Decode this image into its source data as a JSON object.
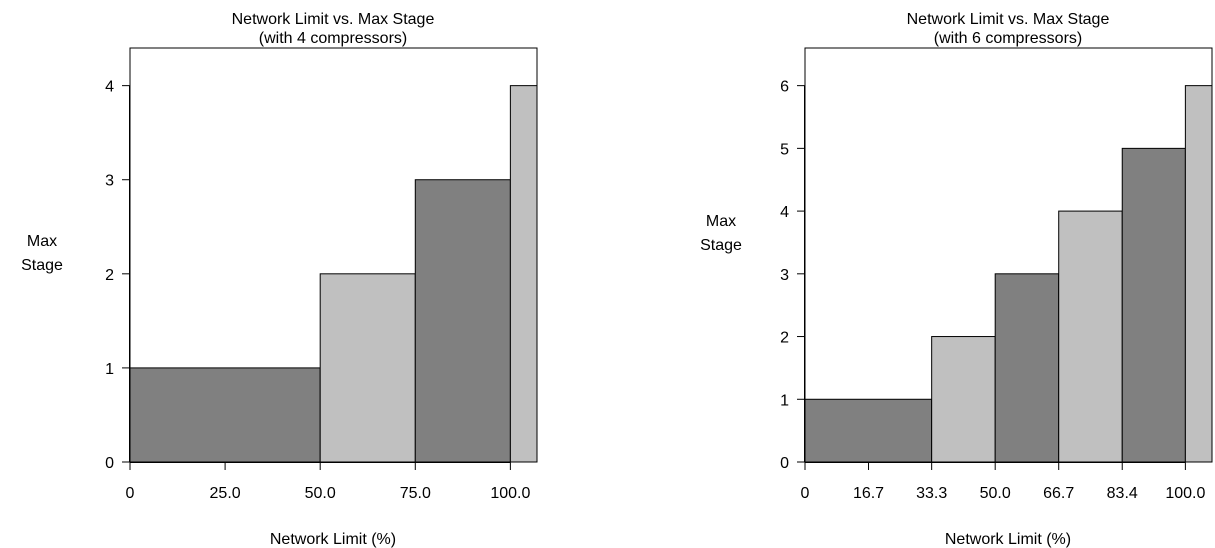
{
  "chart_data": [
    {
      "type": "bar",
      "title": "Network Limit vs. Max Stage",
      "subtitle": "(with 4 compressors)",
      "xlabel": "Network Limit (%)",
      "ylabel_lines": [
        "Max",
        "Stage"
      ],
      "xlim": [
        0,
        107
      ],
      "ylim": [
        0,
        4.4
      ],
      "xticks": [
        0,
        25,
        50,
        75,
        100
      ],
      "xtick_labels": [
        "0",
        "25.0",
        "50.0",
        "75.0",
        "100.0"
      ],
      "yticks": [
        0,
        1,
        2,
        3,
        4
      ],
      "ytick_labels": [
        "0",
        "1",
        "2",
        "3",
        "4"
      ],
      "bars": [
        {
          "x0": 0,
          "x1": 50,
          "value": 1,
          "color": "#808080"
        },
        {
          "x0": 50,
          "x1": 75,
          "value": 2,
          "color": "#c0c0c0"
        },
        {
          "x0": 75,
          "x1": 100,
          "value": 3,
          "color": "#808080"
        },
        {
          "x0": 100,
          "x1": 107,
          "value": 4,
          "color": "#c0c0c0"
        }
      ],
      "grid": false
    },
    {
      "type": "bar",
      "title": "Network Limit vs. Max Stage",
      "subtitle": "(with 6 compressors)",
      "xlabel": "Network Limit (%)",
      "ylabel_lines": [
        "Max",
        "Stage"
      ],
      "xlim": [
        0,
        107
      ],
      "ylim": [
        0,
        6.6
      ],
      "xticks": [
        0,
        16.7,
        33.3,
        50,
        66.7,
        83.4,
        100
      ],
      "xtick_labels": [
        "0",
        "16.7",
        "33.3",
        "50.0",
        "66.7",
        "83.4",
        "100.0"
      ],
      "yticks": [
        0,
        1,
        2,
        3,
        4,
        5,
        6
      ],
      "ytick_labels": [
        "0",
        "1",
        "2",
        "3",
        "4",
        "5",
        "6"
      ],
      "bars": [
        {
          "x0": 0,
          "x1": 33.3,
          "value": 1,
          "color": "#808080"
        },
        {
          "x0": 33.3,
          "x1": 50,
          "value": 2,
          "color": "#c0c0c0"
        },
        {
          "x0": 50,
          "x1": 66.7,
          "value": 3,
          "color": "#808080"
        },
        {
          "x0": 66.7,
          "x1": 83.4,
          "value": 4,
          "color": "#c0c0c0"
        },
        {
          "x0": 83.4,
          "x1": 100,
          "value": 5,
          "color": "#808080"
        },
        {
          "x0": 100,
          "x1": 107,
          "value": 6,
          "color": "#c0c0c0"
        }
      ],
      "grid": false
    }
  ]
}
